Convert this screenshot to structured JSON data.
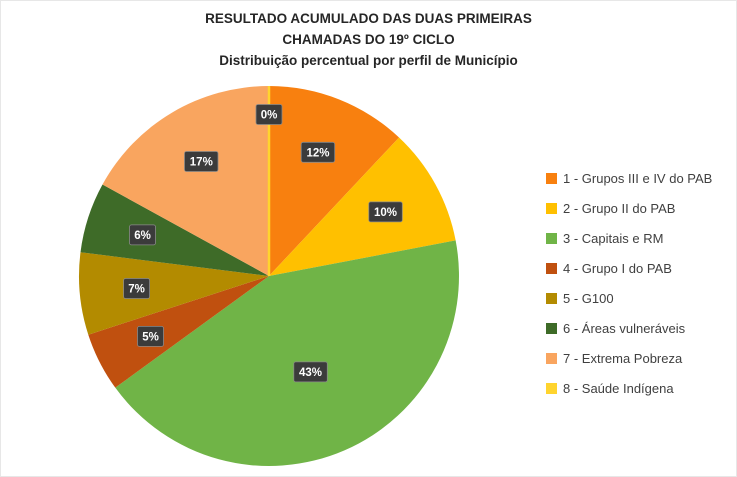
{
  "title": {
    "line1": "RESULTADO ACUMULADO DAS DUAS PRIMEIRAS",
    "line2": "CHAMADAS DO 19º CICLO",
    "line3": "Distribuição percentual por perfil de Município"
  },
  "chart_data": {
    "type": "pie",
    "title": "RESULTADO ACUMULADO DAS DUAS PRIMEIRAS CHAMADAS DO 19º CICLO",
    "subtitle": "Distribuição percentual por perfil de Município",
    "direction": "clockwise",
    "start_angle_deg": 0,
    "legend_position": "right",
    "unit": "%",
    "label_box_color": "#3B3B3B",
    "label_text_color": "#FFFFFF",
    "slices": [
      {
        "label": "1 - Grupos III e IV do PAB",
        "value": 12,
        "color": "#F8800F"
      },
      {
        "label": "2 - Grupo II do PAB",
        "value": 10,
        "color": "#FFC000"
      },
      {
        "label": "3 - Capitais e RM",
        "value": 43,
        "color": "#70B447"
      },
      {
        "label": "4 - Grupo I do PAB",
        "value": 5,
        "color": "#C0500F"
      },
      {
        "label": "5 - G100",
        "value": 7,
        "color": "#B38B00"
      },
      {
        "label": "6 - Áreas vulneráveis",
        "value": 6,
        "color": "#3E6B28"
      },
      {
        "label": "7 - Extrema Pobreza",
        "value": 17,
        "color": "#F9A55F"
      },
      {
        "label": "8 - Saúde Indígena",
        "value": 0,
        "color": "#FFD42E"
      }
    ],
    "data_labels": [
      "12%",
      "10%",
      "43%",
      "5%",
      "7%",
      "6%",
      "17%",
      "0%"
    ]
  }
}
